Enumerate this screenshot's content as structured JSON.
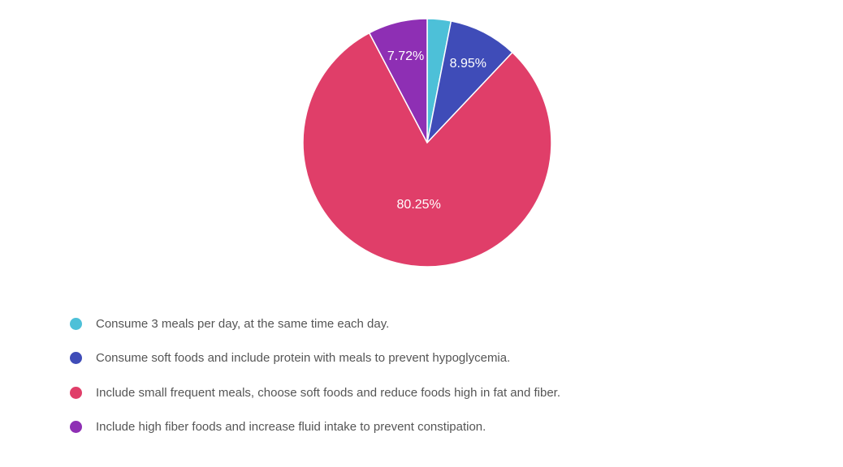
{
  "chart_data": {
    "type": "pie",
    "title": "",
    "categories": [
      "Consume 3 meals per day, at the same time each day.",
      "Consume soft foods and include protein with meals to prevent hypoglycemia.",
      "Include small frequent meals, choose soft foods and reduce foods high in fat and fiber.",
      "Include high fiber foods and increase fluid intake to prevent constipation."
    ],
    "values": [
      3.08,
      8.95,
      80.25,
      7.72
    ],
    "data_labels": [
      "",
      "8.95%",
      "80.25%",
      "7.72%"
    ],
    "colors": [
      "#4dc0d8",
      "#3f4cb8",
      "#e03e69",
      "#8e2fb4"
    ],
    "legend_position": "bottom"
  }
}
